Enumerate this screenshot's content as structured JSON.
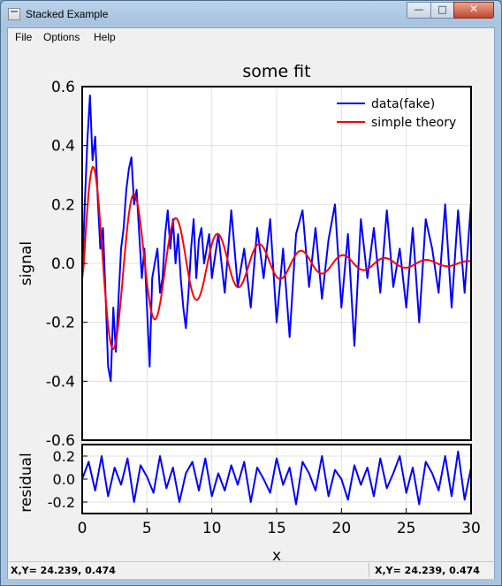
{
  "window": {
    "title": "Stacked Example"
  },
  "controls": {
    "minimize": "—",
    "maximize": "□",
    "close": "✕"
  },
  "menu": {
    "file": "File",
    "options": "Options",
    "help": "Help"
  },
  "status": {
    "left": "X,Y= 24.239, 0.474",
    "right": "X,Y= 24.239, 0.474"
  },
  "chart_data": [
    {
      "type": "line",
      "title": "some fit",
      "ylabel": "signal",
      "xlim": [
        0,
        30
      ],
      "ylim": [
        -0.6,
        0.6
      ],
      "yticks": [
        -0.6,
        -0.4,
        -0.2,
        0.0,
        0.2,
        0.4,
        0.6
      ],
      "ytick_labels": [
        "-0.6",
        "-0.4",
        "-0.2",
        "0.0",
        "0.2",
        "0.4",
        "0.6"
      ],
      "grid": true,
      "legend": "top-right",
      "series": [
        {
          "name": "data(fake)",
          "color": "#0000ff",
          "x": [
            0.0,
            0.2,
            0.4,
            0.6,
            0.8,
            1.0,
            1.2,
            1.4,
            1.6,
            1.8,
            2.0,
            2.2,
            2.4,
            2.6,
            2.8,
            3.0,
            3.2,
            3.4,
            3.6,
            3.8,
            4.0,
            4.2,
            4.4,
            4.6,
            4.8,
            5.0,
            5.2,
            5.4,
            5.6,
            5.8,
            6.0,
            6.2,
            6.4,
            6.6,
            6.8,
            7.0,
            7.2,
            7.4,
            7.6,
            7.8,
            8.0,
            8.2,
            8.4,
            8.6,
            8.8,
            9.0,
            9.2,
            9.4,
            9.6,
            9.8,
            10.0,
            10.5,
            11.0,
            11.5,
            12.0,
            12.5,
            13.0,
            13.5,
            14.0,
            14.5,
            15.0,
            15.5,
            16.0,
            16.5,
            17.0,
            17.5,
            18.0,
            18.5,
            19.0,
            19.5,
            20.0,
            20.5,
            21.0,
            21.5,
            22.0,
            22.5,
            23.0,
            23.5,
            24.0,
            24.5,
            25.0,
            25.5,
            26.0,
            26.5,
            27.0,
            27.5,
            28.0,
            28.5,
            29.0,
            29.5,
            30.0
          ],
          "y": [
            -0.05,
            0.2,
            0.42,
            0.57,
            0.35,
            0.43,
            0.22,
            0.05,
            0.12,
            -0.1,
            -0.35,
            -0.4,
            -0.15,
            -0.3,
            -0.12,
            0.05,
            0.12,
            0.25,
            0.32,
            0.36,
            0.2,
            0.25,
            0.1,
            -0.05,
            0.05,
            -0.15,
            -0.35,
            -0.05,
            0.0,
            0.05,
            -0.1,
            -0.05,
            0.1,
            0.18,
            0.05,
            0.15,
            0.0,
            0.1,
            -0.05,
            -0.15,
            -0.22,
            -0.1,
            0.05,
            0.15,
            -0.05,
            0.08,
            0.12,
            0.0,
            0.05,
            0.1,
            -0.05,
            0.1,
            -0.1,
            0.18,
            -0.08,
            0.05,
            -0.15,
            0.12,
            -0.05,
            0.15,
            -0.2,
            0.05,
            -0.25,
            0.1,
            0.18,
            -0.08,
            0.12,
            -0.12,
            0.08,
            0.2,
            -0.15,
            0.1,
            -0.28,
            0.15,
            -0.05,
            0.12,
            -0.1,
            0.18,
            -0.08,
            0.05,
            -0.15,
            0.12,
            -0.2,
            0.15,
            0.05,
            -0.1,
            0.2,
            -0.15,
            0.18,
            -0.1,
            0.21
          ]
        },
        {
          "name": "simple theory",
          "color": "#ff0000",
          "model": {
            "amplitude": 0.4,
            "omega": 1.95,
            "decay": 0.24,
            "offset": -0.0
          }
        }
      ]
    },
    {
      "type": "line",
      "ylabel": "residual",
      "xlabel": "x",
      "xlim": [
        0,
        30
      ],
      "ylim": [
        -0.3,
        0.3
      ],
      "xticks": [
        0,
        5,
        10,
        15,
        20,
        25,
        30
      ],
      "xtick_labels": [
        "0",
        "5",
        "10",
        "15",
        "20",
        "25",
        "30"
      ],
      "yticks": [
        -0.2,
        0.0,
        0.2
      ],
      "ytick_labels": [
        "-0.2",
        "0.0",
        "0.2"
      ],
      "grid": true,
      "series": [
        {
          "color": "#0000ff",
          "x": [
            0.0,
            0.5,
            1.0,
            1.5,
            2.0,
            2.5,
            3.0,
            3.5,
            4.0,
            4.5,
            5.0,
            5.5,
            6.0,
            6.5,
            7.0,
            7.5,
            8.0,
            8.5,
            9.0,
            9.5,
            10.0,
            10.5,
            11.0,
            11.5,
            12.0,
            12.5,
            13.0,
            13.5,
            14.0,
            14.5,
            15.0,
            15.5,
            16.0,
            16.5,
            17.0,
            17.5,
            18.0,
            18.5,
            19.0,
            19.5,
            20.0,
            20.5,
            21.0,
            21.5,
            22.0,
            22.5,
            23.0,
            23.5,
            24.0,
            24.5,
            25.0,
            25.5,
            26.0,
            26.5,
            27.0,
            27.5,
            28.0,
            28.5,
            29.0,
            29.5,
            30.0
          ],
          "y": [
            0.0,
            0.15,
            -0.1,
            0.2,
            -0.15,
            0.1,
            -0.05,
            0.18,
            -0.2,
            0.12,
            0.02,
            -0.12,
            0.2,
            -0.08,
            0.1,
            -0.2,
            0.05,
            0.15,
            -0.1,
            0.18,
            -0.15,
            0.05,
            -0.1,
            0.12,
            -0.05,
            0.15,
            -0.2,
            0.1,
            0.0,
            -0.12,
            0.18,
            -0.05,
            0.1,
            -0.22,
            0.15,
            0.05,
            -0.1,
            0.2,
            -0.15,
            0.08,
            0.0,
            -0.18,
            0.12,
            -0.05,
            0.1,
            -0.15,
            0.18,
            -0.08,
            0.05,
            0.2,
            -0.12,
            0.1,
            -0.22,
            0.15,
            0.05,
            -0.1,
            0.2,
            -0.15,
            0.24,
            -0.18,
            0.1
          ]
        }
      ]
    }
  ]
}
